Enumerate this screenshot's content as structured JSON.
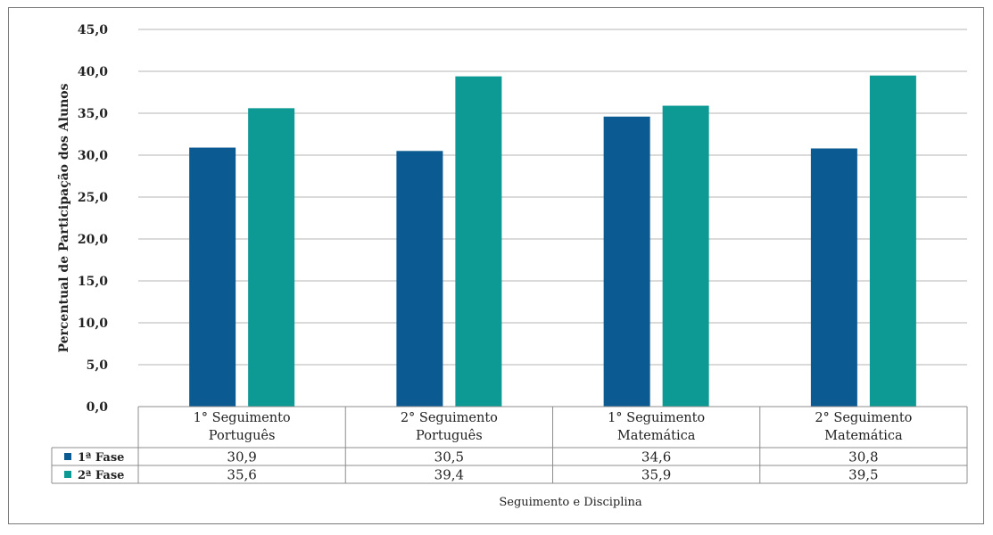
{
  "chart_data": {
    "type": "bar",
    "categories": [
      [
        "1° Seguimento",
        "Português"
      ],
      [
        "2° Seguimento",
        "Português"
      ],
      [
        "1° Seguimento",
        "Matemática"
      ],
      [
        "2° Seguimento",
        "Matemática"
      ]
    ],
    "series": [
      {
        "name": "1ª Fase",
        "color": "#0b5a92",
        "values": [
          30.9,
          30.5,
          34.6,
          30.8
        ],
        "labels": [
          "30,9",
          "30,5",
          "34,6",
          "30,8"
        ]
      },
      {
        "name": "2ª Fase",
        "color": "#0e9a94",
        "values": [
          35.6,
          39.4,
          35.9,
          39.5
        ],
        "labels": [
          "35,6",
          "39,4",
          "35,9",
          "39,5"
        ]
      }
    ],
    "ylim": [
      0,
      45
    ],
    "yticks": [
      "0,0",
      "5,0",
      "10,0",
      "15,0",
      "20,0",
      "25,0",
      "30,0",
      "35,0",
      "40,0",
      "45,0"
    ],
    "ylabel": "Percentual de Participação dos Alunos",
    "xlabel": "Seguimento e Disciplina",
    "grid": true,
    "legend": "data-table"
  }
}
